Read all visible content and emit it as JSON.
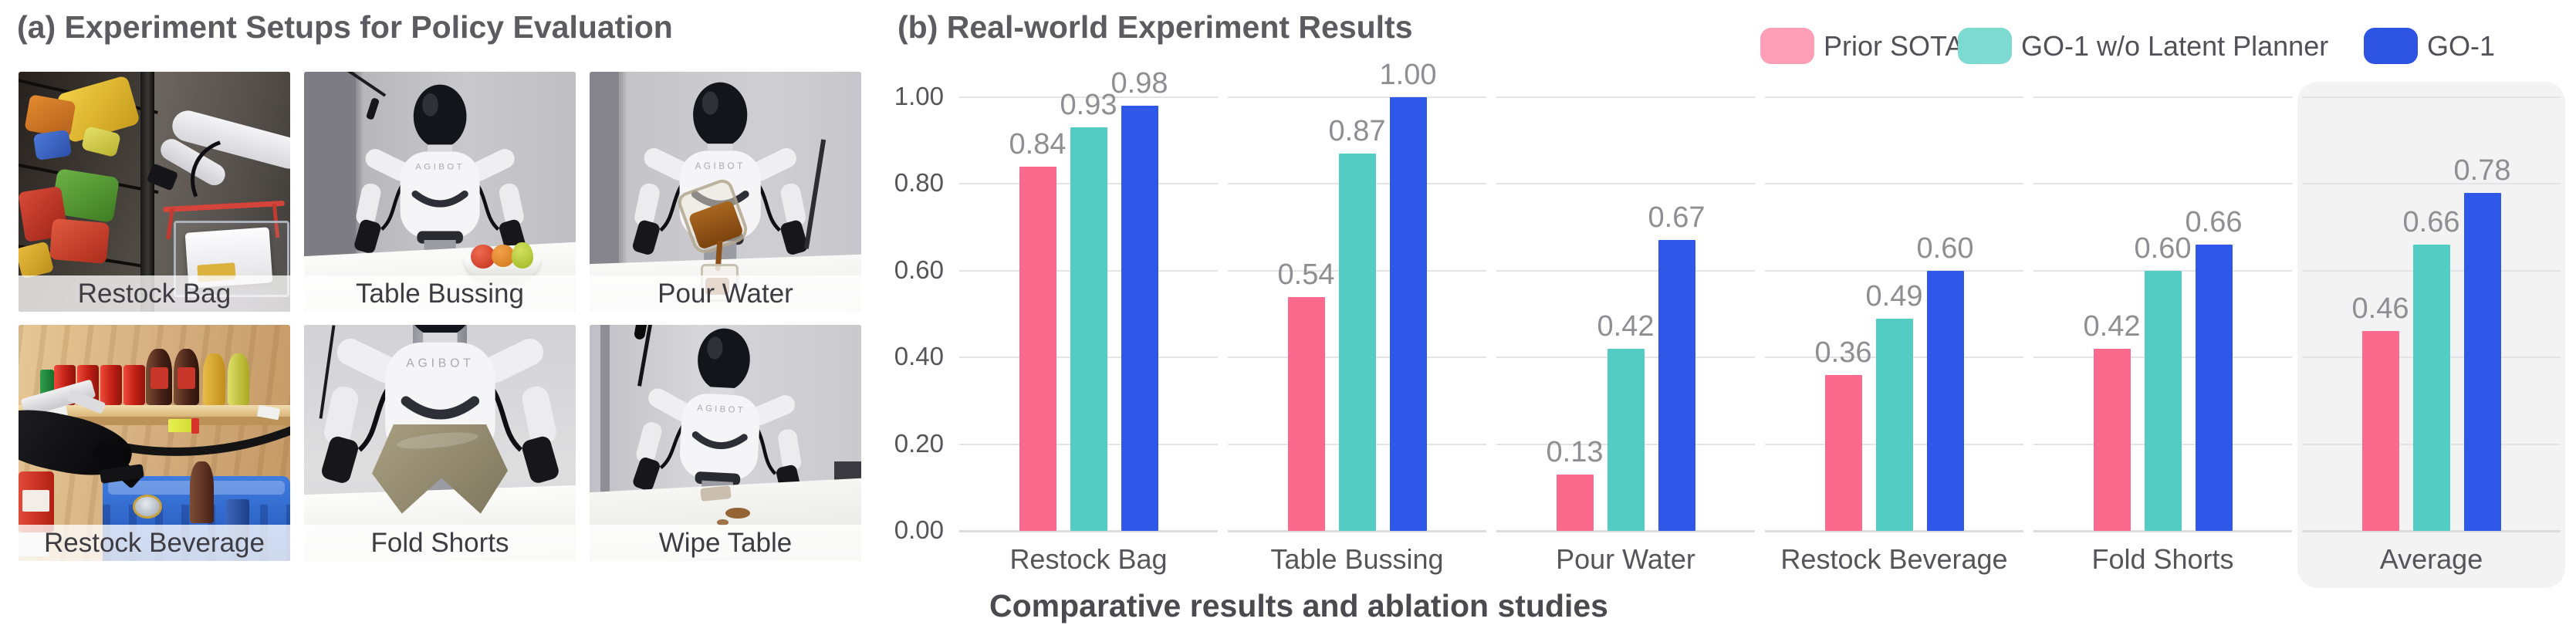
{
  "panel_a": {
    "title": "(a) Experiment Setups for Policy Evaluation",
    "robot_brand": "AGIBOT",
    "tiles": [
      {
        "label": "Restock Bag",
        "scene": "restock-bag"
      },
      {
        "label": "Table Bussing",
        "scene": "table-bussing"
      },
      {
        "label": "Pour Water",
        "scene": "pour-water"
      },
      {
        "label": "Restock Beverage",
        "scene": "restock-beverage"
      },
      {
        "label": "Fold Shorts",
        "scene": "fold-shorts"
      },
      {
        "label": "Wipe Table",
        "scene": "wipe-table"
      }
    ]
  },
  "panel_b": {
    "title": "(b) Real-world Experiment Results",
    "caption": "Comparative results and ablation studies",
    "legend": [
      {
        "label": "Prior SOTA",
        "color": "#ff9fb7"
      },
      {
        "label": "GO-1 w/o Latent Planner",
        "color": "#7ddad1"
      },
      {
        "label": "GO-1",
        "color": "#2d53e3"
      }
    ]
  },
  "chart_data": {
    "type": "bar",
    "title": "(b) Real-world Experiment Results",
    "categories": [
      "Restock Bag",
      "Table Bussing",
      "Pour Water",
      "Restock Beverage",
      "Fold Shorts",
      "Average"
    ],
    "series": [
      {
        "name": "Prior SOTA",
        "color": "#fb698c",
        "values": [
          0.84,
          0.54,
          0.13,
          0.36,
          0.42,
          0.46
        ]
      },
      {
        "name": "GO-1 w/o Latent Planner",
        "color": "#53cdc4",
        "values": [
          0.93,
          0.87,
          0.42,
          0.49,
          0.6,
          0.66
        ]
      },
      {
        "name": "GO-1",
        "color": "#2f57e8",
        "values": [
          0.98,
          1.0,
          0.67,
          0.6,
          0.66,
          0.78
        ]
      }
    ],
    "xlabel": "",
    "ylabel": "",
    "ylim": [
      0,
      1
    ],
    "yticks": [
      0,
      0.2,
      0.4,
      0.6,
      0.8,
      1.0
    ],
    "value_label_decimals": 2,
    "grid": true,
    "faceted_gridlines": true,
    "legend_position": "top-right",
    "highlight_category": "Average",
    "highlight_color": "#f3f3f4"
  }
}
